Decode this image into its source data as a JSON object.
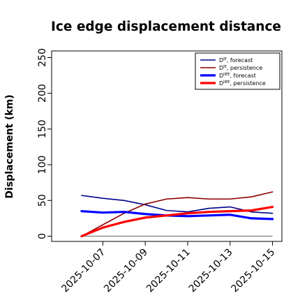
{
  "chart_data": {
    "type": "line",
    "title": "Ice edge displacement distance",
    "xlabel": "",
    "ylabel": "Displacement (km)",
    "ylim": [
      0,
      250
    ],
    "yticks": [
      0,
      50,
      100,
      150,
      200,
      250
    ],
    "x": [
      "2025-10-06",
      "2025-10-07",
      "2025-10-08",
      "2025-10-09",
      "2025-10-10",
      "2025-10-11",
      "2025-10-12",
      "2025-10-13",
      "2025-10-14",
      "2025-10-15"
    ],
    "xtick_labels": [
      "2025-10-07",
      "2025-10-09",
      "2025-10-11",
      "2025-10-13",
      "2025-10-15"
    ],
    "highlighted_tick": "2025-10-07",
    "highlight_color": "#2e8b2e",
    "grid": false,
    "legend_position": "top-right",
    "baseline": 0,
    "series": [
      {
        "name_main": "D",
        "name_sup": "IE",
        "name_rest": ", forecast",
        "color": "#00008b",
        "width": 1.6,
        "values": [
          57,
          53,
          50,
          44,
          36,
          34,
          39,
          41,
          34,
          32
        ]
      },
      {
        "name_main": "D",
        "name_sup": "IE",
        "name_rest": ", persistence",
        "color": "#8b0000",
        "width": 1.6,
        "values": [
          0,
          16,
          32,
          45,
          52,
          54,
          52,
          52,
          55,
          62
        ]
      },
      {
        "name_main": "D",
        "name_sup": "IIEE",
        "name_rest": ", forecast",
        "color": "#0000ff",
        "width": 3.2,
        "values": [
          35,
          33,
          34,
          31,
          29,
          28,
          29,
          30,
          25,
          24
        ]
      },
      {
        "name_main": "D",
        "name_sup": "IIEE",
        "name_rest": ", persistence",
        "color": "#ff0000",
        "width": 3.2,
        "values": [
          0,
          12,
          20,
          26,
          29,
          32,
          34,
          35,
          36,
          41
        ]
      }
    ]
  }
}
